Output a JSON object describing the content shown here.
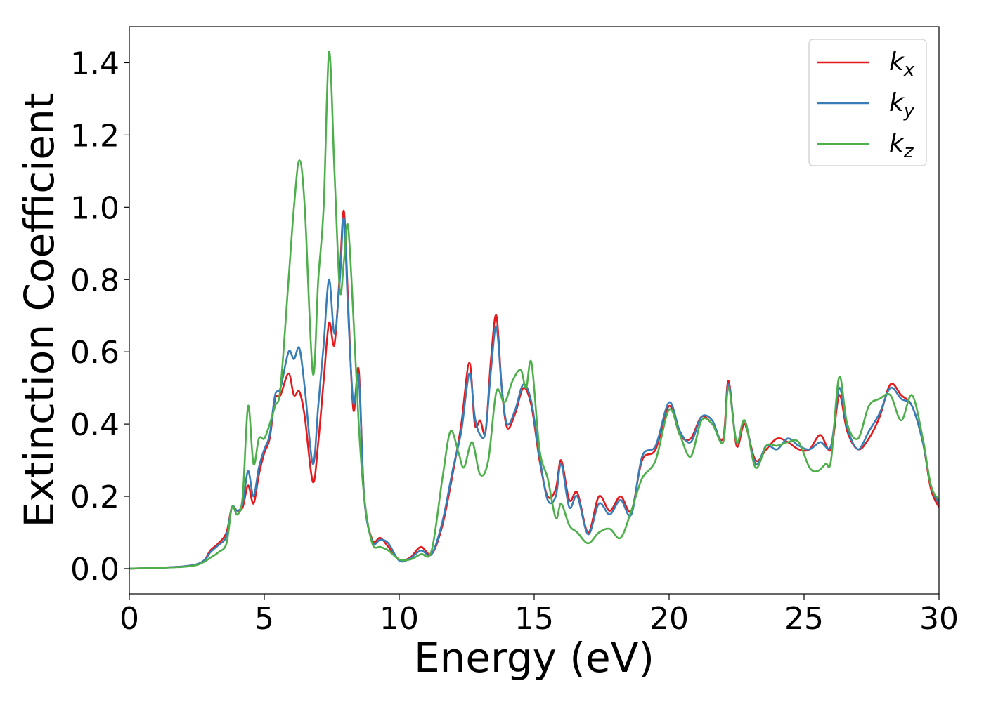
{
  "chart_data": {
    "type": "line",
    "xlabel": "Energy (eV)",
    "ylabel": "Extinction Coefficient",
    "xlim": [
      0,
      30
    ],
    "ylim": [
      -0.07,
      1.5
    ],
    "xticks": [
      0,
      5,
      10,
      15,
      20,
      25,
      30
    ],
    "yticks": [
      0.0,
      0.2,
      0.4,
      0.6,
      0.8,
      1.0,
      1.2,
      1.4
    ],
    "xtick_labels": [
      "0",
      "5",
      "10",
      "15",
      "20",
      "25",
      "30"
    ],
    "ytick_labels": [
      "0.0",
      "0.2",
      "0.4",
      "0.6",
      "0.8",
      "1.0",
      "1.2",
      "1.4"
    ],
    "grid": false,
    "legend_position": "top-right",
    "series": [
      {
        "name": "kx",
        "label_base": "k",
        "label_sub": "x",
        "color": "#e41a1c",
        "x": [
          0,
          1,
          2,
          2.5,
          2.8,
          3.0,
          3.3,
          3.6,
          3.8,
          4.0,
          4.2,
          4.4,
          4.6,
          4.8,
          5.0,
          5.2,
          5.4,
          5.6,
          5.9,
          6.1,
          6.3,
          6.5,
          6.8,
          7.0,
          7.2,
          7.4,
          7.6,
          7.8,
          7.95,
          8.1,
          8.3,
          8.5,
          8.7,
          9.0,
          9.3,
          9.6,
          10.0,
          10.4,
          10.8,
          11.2,
          11.6,
          12.0,
          12.3,
          12.6,
          12.8,
          13.0,
          13.2,
          13.4,
          13.6,
          13.8,
          14.0,
          14.3,
          14.6,
          14.9,
          15.2,
          15.5,
          15.8,
          16.0,
          16.3,
          16.6,
          17.0,
          17.4,
          17.8,
          18.2,
          18.6,
          19.0,
          19.5,
          20.0,
          20.4,
          20.8,
          21.2,
          21.6,
          22.0,
          22.2,
          22.5,
          22.8,
          23.2,
          23.6,
          24.0,
          24.4,
          24.8,
          25.2,
          25.6,
          26.0,
          26.3,
          26.6,
          27.0,
          27.4,
          27.8,
          28.2,
          28.6,
          29.0,
          29.4,
          29.7,
          30.0
        ],
        "y": [
          0.0,
          0.002,
          0.006,
          0.012,
          0.025,
          0.05,
          0.07,
          0.1,
          0.17,
          0.16,
          0.17,
          0.23,
          0.18,
          0.26,
          0.32,
          0.36,
          0.47,
          0.48,
          0.54,
          0.48,
          0.49,
          0.42,
          0.24,
          0.35,
          0.52,
          0.68,
          0.62,
          0.82,
          0.99,
          0.75,
          0.44,
          0.55,
          0.2,
          0.08,
          0.085,
          0.06,
          0.025,
          0.03,
          0.06,
          0.04,
          0.12,
          0.27,
          0.4,
          0.57,
          0.4,
          0.41,
          0.38,
          0.58,
          0.7,
          0.5,
          0.39,
          0.43,
          0.5,
          0.45,
          0.3,
          0.2,
          0.22,
          0.3,
          0.19,
          0.21,
          0.1,
          0.2,
          0.16,
          0.2,
          0.16,
          0.3,
          0.33,
          0.45,
          0.37,
          0.36,
          0.42,
          0.4,
          0.36,
          0.52,
          0.34,
          0.4,
          0.3,
          0.33,
          0.36,
          0.35,
          0.33,
          0.33,
          0.37,
          0.33,
          0.48,
          0.38,
          0.33,
          0.36,
          0.42,
          0.51,
          0.48,
          0.45,
          0.35,
          0.22,
          0.17
        ]
      },
      {
        "name": "ky",
        "label_base": "k",
        "label_sub": "y",
        "color": "#377eb8",
        "x": [
          0,
          1,
          2,
          2.5,
          2.8,
          3.0,
          3.3,
          3.6,
          3.8,
          4.0,
          4.2,
          4.4,
          4.6,
          4.8,
          5.0,
          5.2,
          5.4,
          5.6,
          5.9,
          6.1,
          6.3,
          6.5,
          6.8,
          7.0,
          7.2,
          7.4,
          7.6,
          7.8,
          7.95,
          8.1,
          8.3,
          8.5,
          8.7,
          9.0,
          9.3,
          9.6,
          10.0,
          10.4,
          10.8,
          11.2,
          11.6,
          12.0,
          12.3,
          12.6,
          12.8,
          13.0,
          13.2,
          13.4,
          13.6,
          13.8,
          14.0,
          14.3,
          14.6,
          14.9,
          15.2,
          15.5,
          15.8,
          16.0,
          16.3,
          16.6,
          17.0,
          17.4,
          17.8,
          18.2,
          18.6,
          19.0,
          19.5,
          20.0,
          20.4,
          20.8,
          21.2,
          21.6,
          22.0,
          22.2,
          22.5,
          22.8,
          23.2,
          23.6,
          24.0,
          24.4,
          24.8,
          25.2,
          25.6,
          26.0,
          26.3,
          26.6,
          27.0,
          27.4,
          27.8,
          28.2,
          28.6,
          29.0,
          29.4,
          29.7,
          30.0
        ],
        "y": [
          0.0,
          0.002,
          0.006,
          0.012,
          0.024,
          0.045,
          0.065,
          0.09,
          0.17,
          0.16,
          0.18,
          0.27,
          0.2,
          0.28,
          0.33,
          0.37,
          0.48,
          0.5,
          0.6,
          0.58,
          0.61,
          0.5,
          0.29,
          0.45,
          0.62,
          0.8,
          0.65,
          0.8,
          0.97,
          0.72,
          0.46,
          0.53,
          0.2,
          0.075,
          0.08,
          0.07,
          0.022,
          0.028,
          0.05,
          0.04,
          0.13,
          0.28,
          0.38,
          0.54,
          0.42,
          0.37,
          0.38,
          0.55,
          0.67,
          0.5,
          0.4,
          0.44,
          0.51,
          0.46,
          0.31,
          0.19,
          0.2,
          0.29,
          0.17,
          0.2,
          0.095,
          0.18,
          0.15,
          0.19,
          0.15,
          0.31,
          0.34,
          0.46,
          0.38,
          0.35,
          0.42,
          0.41,
          0.35,
          0.51,
          0.35,
          0.41,
          0.29,
          0.34,
          0.33,
          0.36,
          0.34,
          0.33,
          0.35,
          0.34,
          0.5,
          0.39,
          0.33,
          0.38,
          0.43,
          0.5,
          0.47,
          0.45,
          0.35,
          0.23,
          0.18
        ]
      },
      {
        "name": "kz",
        "label_base": "k",
        "label_sub": "z",
        "color": "#4daf4a",
        "x": [
          0,
          1,
          2,
          2.5,
          2.8,
          3.0,
          3.3,
          3.6,
          3.8,
          4.0,
          4.2,
          4.4,
          4.6,
          4.8,
          5.0,
          5.2,
          5.4,
          5.6,
          5.9,
          6.1,
          6.3,
          6.5,
          6.8,
          7.0,
          7.2,
          7.4,
          7.6,
          7.8,
          7.95,
          8.1,
          8.3,
          8.5,
          8.7,
          9.0,
          9.3,
          9.6,
          10.0,
          10.4,
          10.8,
          11.2,
          11.6,
          11.9,
          12.2,
          12.4,
          12.7,
          13.0,
          13.3,
          13.6,
          13.9,
          14.2,
          14.5,
          14.7,
          14.9,
          15.2,
          15.5,
          15.8,
          16.0,
          16.3,
          16.6,
          17.0,
          17.4,
          17.8,
          18.2,
          18.6,
          19.0,
          19.5,
          20.0,
          20.4,
          20.8,
          21.2,
          21.6,
          22.0,
          22.2,
          22.5,
          22.8,
          23.2,
          23.6,
          24.0,
          24.4,
          24.8,
          25.2,
          25.5,
          25.8,
          26.0,
          26.3,
          26.6,
          27.0,
          27.4,
          27.8,
          28.2,
          28.6,
          29.0,
          29.4,
          29.7,
          30.0
        ],
        "y": [
          0.0,
          0.002,
          0.005,
          0.01,
          0.02,
          0.03,
          0.045,
          0.07,
          0.17,
          0.15,
          0.2,
          0.45,
          0.29,
          0.36,
          0.36,
          0.4,
          0.45,
          0.5,
          0.8,
          1.0,
          1.13,
          1.0,
          0.54,
          0.8,
          1.0,
          1.43,
          1.1,
          0.77,
          0.85,
          0.95,
          0.7,
          0.4,
          0.2,
          0.07,
          0.06,
          0.05,
          0.025,
          0.025,
          0.04,
          0.05,
          0.25,
          0.38,
          0.32,
          0.28,
          0.35,
          0.26,
          0.3,
          0.49,
          0.46,
          0.52,
          0.55,
          0.5,
          0.57,
          0.33,
          0.25,
          0.14,
          0.18,
          0.12,
          0.1,
          0.07,
          0.1,
          0.11,
          0.085,
          0.16,
          0.25,
          0.3,
          0.44,
          0.37,
          0.31,
          0.41,
          0.4,
          0.35,
          0.5,
          0.35,
          0.41,
          0.28,
          0.34,
          0.34,
          0.35,
          0.35,
          0.28,
          0.27,
          0.29,
          0.3,
          0.53,
          0.4,
          0.36,
          0.45,
          0.47,
          0.48,
          0.41,
          0.48,
          0.36,
          0.23,
          0.19
        ]
      }
    ]
  }
}
